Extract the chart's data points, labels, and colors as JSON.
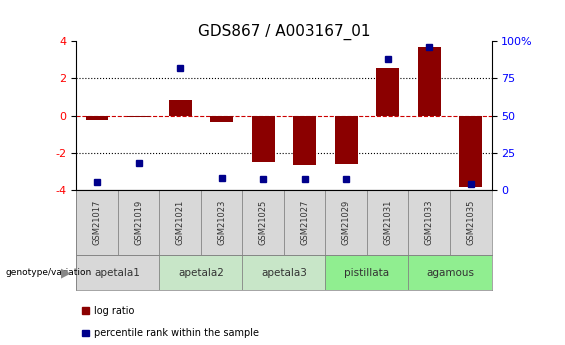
{
  "title": "GDS867 / A003167_01",
  "samples": [
    "GSM21017",
    "GSM21019",
    "GSM21021",
    "GSM21023",
    "GSM21025",
    "GSM21027",
    "GSM21029",
    "GSM21031",
    "GSM21033",
    "GSM21035"
  ],
  "log_ratio": [
    -0.25,
    -0.05,
    0.85,
    -0.35,
    -2.5,
    -2.65,
    -2.6,
    2.55,
    3.7,
    -3.85
  ],
  "percentile_rank": [
    5,
    18,
    82,
    8,
    7,
    7,
    7,
    88,
    96,
    4
  ],
  "groups": [
    {
      "label": "apetala1",
      "samples": [
        0,
        1
      ],
      "color": "#d8d8d8"
    },
    {
      "label": "apetala2",
      "samples": [
        2,
        3
      ],
      "color": "#c8e6c8"
    },
    {
      "label": "apetala3",
      "samples": [
        4,
        5
      ],
      "color": "#c8e6c8"
    },
    {
      "label": "pistillata",
      "samples": [
        6,
        7
      ],
      "color": "#90ee90"
    },
    {
      "label": "agamous",
      "samples": [
        8,
        9
      ],
      "color": "#90ee90"
    }
  ],
  "ylim_left": [
    -4,
    4
  ],
  "ylim_right": [
    0,
    100
  ],
  "yticks_left": [
    -4,
    -2,
    0,
    2,
    4
  ],
  "yticks_right": [
    0,
    25,
    50,
    75,
    100
  ],
  "ytick_labels_right": [
    "0",
    "25",
    "50",
    "75",
    "100%"
  ],
  "bar_color": "#8b0000",
  "dot_color": "#00008b",
  "hline_color": "#cc0000",
  "grid_color": "#000000",
  "bg_color": "#ffffff",
  "title_fontsize": 11,
  "legend_items": [
    {
      "label": "log ratio",
      "color": "#8b0000"
    },
    {
      "label": "percentile rank within the sample",
      "color": "#00008b"
    }
  ]
}
